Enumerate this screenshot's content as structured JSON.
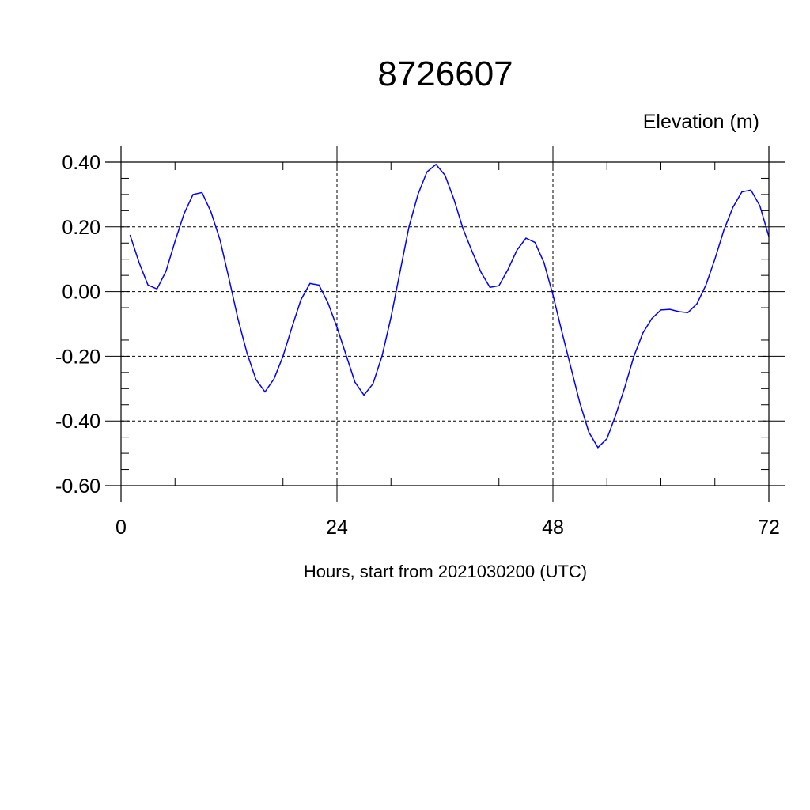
{
  "chart_data": {
    "type": "line",
    "title": "8726607",
    "ylabel": "Elevation (m)",
    "xlabel": "Hours, start from 2021030200 (UTC)",
    "xlim": [
      0,
      72
    ],
    "ylim": [
      -0.6,
      0.4
    ],
    "x_ticks": [
      0,
      24,
      48,
      72
    ],
    "x_tick_labels": [
      "0",
      "24",
      "48",
      "72"
    ],
    "y_ticks": [
      0.4,
      0.2,
      0.0,
      -0.2,
      -0.4,
      -0.6
    ],
    "y_tick_labels": [
      "0.40",
      "0.20",
      "0.00",
      "-0.20",
      "-0.40",
      "-0.60"
    ],
    "x_minor_step": 6,
    "y_minor_step": 0.05,
    "grid": true,
    "series": [
      {
        "color": "#0000ff",
        "x": [
          1,
          2,
          3,
          4,
          5,
          6,
          7,
          8,
          9,
          10,
          11,
          12,
          13,
          14,
          15,
          16,
          17,
          18,
          19,
          20,
          21,
          22,
          23,
          24,
          25,
          26,
          27,
          28,
          29,
          30,
          31,
          32,
          33,
          34,
          35,
          36,
          37,
          38,
          39,
          40,
          41,
          42,
          43,
          44,
          45,
          46,
          47,
          48,
          49,
          50,
          51,
          52,
          53,
          54,
          55,
          56,
          57,
          58,
          59,
          60,
          61,
          62,
          63,
          64,
          65,
          66,
          67,
          68,
          69,
          70,
          71,
          72
        ],
        "y": [
          0.175,
          0.09,
          0.02,
          0.008,
          0.063,
          0.155,
          0.24,
          0.3,
          0.306,
          0.246,
          0.16,
          0.04,
          -0.085,
          -0.19,
          -0.272,
          -0.31,
          -0.27,
          -0.2,
          -0.11,
          -0.025,
          0.025,
          0.02,
          -0.035,
          -0.11,
          -0.195,
          -0.28,
          -0.32,
          -0.285,
          -0.2,
          -0.08,
          0.06,
          0.2,
          0.3,
          0.37,
          0.393,
          0.36,
          0.285,
          0.195,
          0.125,
          0.06,
          0.013,
          0.018,
          0.068,
          0.128,
          0.165,
          0.152,
          0.09,
          -0.01,
          -0.125,
          -0.235,
          -0.345,
          -0.435,
          -0.482,
          -0.455,
          -0.38,
          -0.295,
          -0.2,
          -0.128,
          -0.083,
          -0.057,
          -0.055,
          -0.062,
          -0.065,
          -0.038,
          0.02,
          0.1,
          0.19,
          0.26,
          0.308,
          0.314,
          0.265,
          0.17
        ]
      }
    ]
  }
}
